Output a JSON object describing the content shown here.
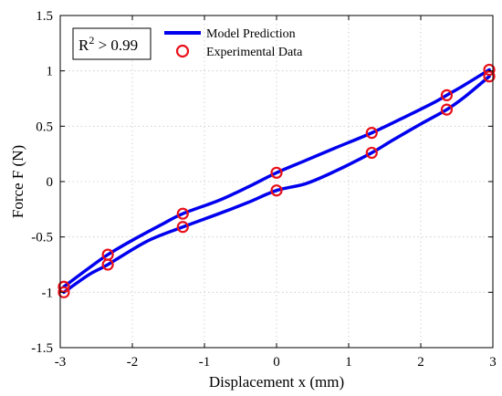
{
  "chart_data": {
    "type": "line",
    "xlabel": "Displacement x (mm)",
    "ylabel": "Force F (N)",
    "xlim": [
      -3,
      3
    ],
    "ylim": [
      -1.5,
      1.5
    ],
    "xticks": [
      -3,
      -2,
      -1,
      0,
      1,
      2,
      3
    ],
    "yticks": [
      -1.5,
      -1,
      -0.5,
      0,
      0.5,
      1,
      1.5
    ],
    "xtick_labels": [
      "-3",
      "-2",
      "-1",
      "0",
      "1",
      "2",
      "3"
    ],
    "ytick_labels": [
      "-1.5",
      "-1",
      "-0.5",
      "0",
      "0.5",
      "1",
      "1.5"
    ],
    "grid": true,
    "legend_position": "top-center",
    "annotation": {
      "base": "R",
      "superscript": "2",
      "rest": " > 0.99"
    },
    "series": [
      {
        "name": "Model Prediction",
        "kind": "line",
        "color": "#0000ee",
        "branches": [
          {
            "x": [
              -2.95,
              -2.6,
              -2.34,
              -2.0,
              -1.6,
              -1.3,
              -0.8,
              -0.4,
              0.0,
              0.4,
              0.8,
              1.32,
              1.8,
              2.2,
              2.36,
              2.6,
              2.95
            ],
            "y": [
              -0.95,
              -0.78,
              -0.66,
              -0.53,
              -0.39,
              -0.29,
              -0.17,
              -0.05,
              0.08,
              0.19,
              0.3,
              0.44,
              0.59,
              0.72,
              0.78,
              0.87,
              1.01
            ]
          },
          {
            "x": [
              2.95,
              2.6,
              2.36,
              2.0,
              1.6,
              1.32,
              0.8,
              0.4,
              0.0,
              -0.4,
              -0.8,
              -1.3,
              -1.8,
              -2.34,
              -2.6,
              -2.95
            ],
            "y": [
              0.95,
              0.76,
              0.65,
              0.52,
              0.37,
              0.26,
              0.09,
              -0.02,
              -0.08,
              -0.19,
              -0.29,
              -0.41,
              -0.54,
              -0.75,
              -0.84,
              -1.0
            ]
          }
        ]
      },
      {
        "name": "Experimental Data",
        "kind": "marker",
        "color": "#e8101a",
        "x": [
          -2.95,
          -2.95,
          -2.34,
          -2.34,
          -1.3,
          -1.3,
          0.0,
          0.0,
          1.32,
          1.32,
          2.36,
          2.36,
          2.95,
          2.95
        ],
        "y": [
          -0.95,
          -1.0,
          -0.66,
          -0.75,
          -0.29,
          -0.41,
          0.08,
          -0.08,
          0.44,
          0.26,
          0.78,
          0.65,
          1.01,
          0.95
        ]
      }
    ]
  }
}
